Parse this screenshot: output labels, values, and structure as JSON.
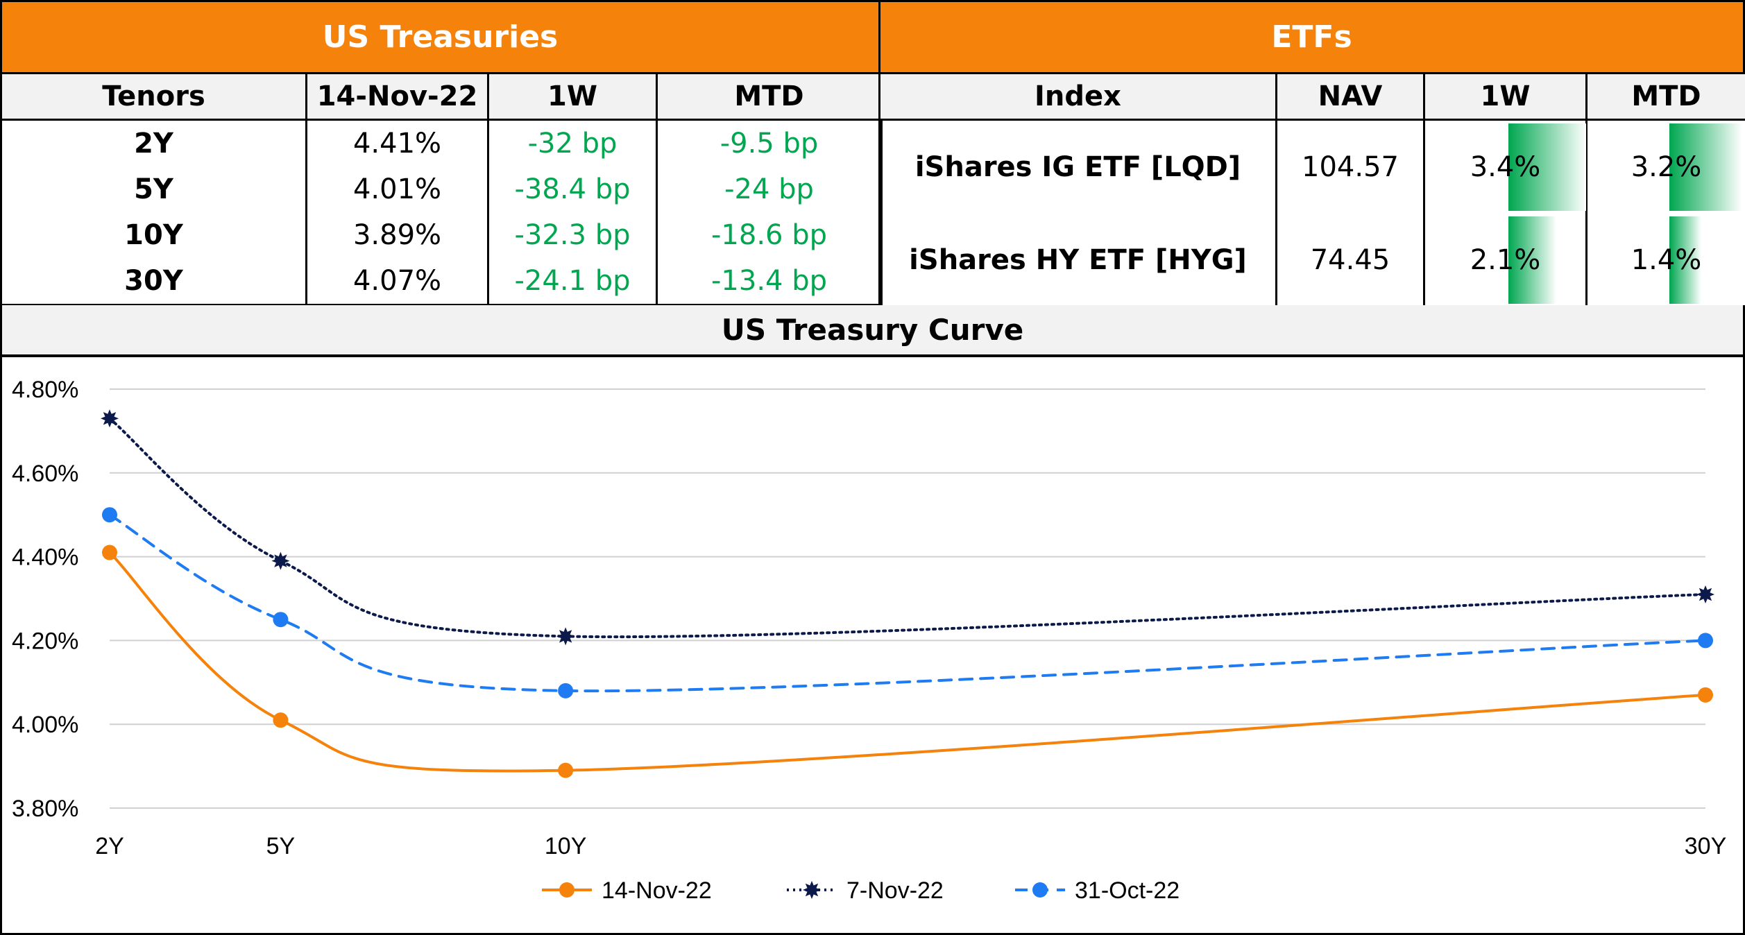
{
  "ust": {
    "title": "US Treasuries",
    "headers": [
      "Tenors",
      "14-Nov-22",
      "1W",
      "MTD"
    ],
    "rows": [
      {
        "tenor": "2Y",
        "yield": "4.41%",
        "w1": "-32 bp",
        "mtd": "-9.5 bp"
      },
      {
        "tenor": "5Y",
        "yield": "4.01%",
        "w1": "-38.4 bp",
        "mtd": "-24 bp"
      },
      {
        "tenor": "10Y",
        "yield": "3.89%",
        "w1": "-32.3 bp",
        "mtd": "-18.6 bp"
      },
      {
        "tenor": "30Y",
        "yield": "4.07%",
        "w1": "-24.1 bp",
        "mtd": "-13.4 bp"
      }
    ]
  },
  "etf": {
    "title": "ETFs",
    "headers": [
      "Index",
      "NAV",
      "1W",
      "MTD"
    ],
    "rows": [
      {
        "index": "iShares IG ETF [LQD]",
        "nav": "104.57",
        "w1": "3.4%",
        "mtd": "3.2%",
        "w1_value": 3.4,
        "mtd_value": 3.2
      },
      {
        "index": "iShares HY ETF [HYG]",
        "nav": "74.45",
        "w1": "2.1%",
        "mtd": "1.4%",
        "w1_value": 2.1,
        "mtd_value": 1.4
      }
    ],
    "bar_color": "#00A650"
  },
  "chart_data": {
    "type": "line",
    "title": "US Treasury Curve",
    "categories": [
      "2Y",
      "5Y",
      "10Y",
      "30Y"
    ],
    "x": [
      2,
      5,
      10,
      30
    ],
    "ylim": [
      3.8,
      4.8
    ],
    "yticks": [
      "4.80%",
      "4.60%",
      "4.40%",
      "4.20%",
      "4.00%",
      "3.80%"
    ],
    "ytick_values": [
      4.8,
      4.6,
      4.4,
      4.2,
      4.0,
      3.8
    ],
    "grid": true,
    "legend_position": "bottom",
    "series": [
      {
        "name": "14-Nov-22",
        "values": [
          4.41,
          4.01,
          3.89,
          4.07
        ],
        "color": "#F5820B",
        "style": "solid"
      },
      {
        "name": "7-Nov-22",
        "values": [
          4.73,
          4.39,
          4.21,
          4.31
        ],
        "color": "#0B1A4A",
        "style": "dotted"
      },
      {
        "name": "31-Oct-22",
        "values": [
          4.5,
          4.25,
          4.08,
          4.2
        ],
        "color": "#1E7BF2",
        "style": "dashed"
      }
    ]
  }
}
